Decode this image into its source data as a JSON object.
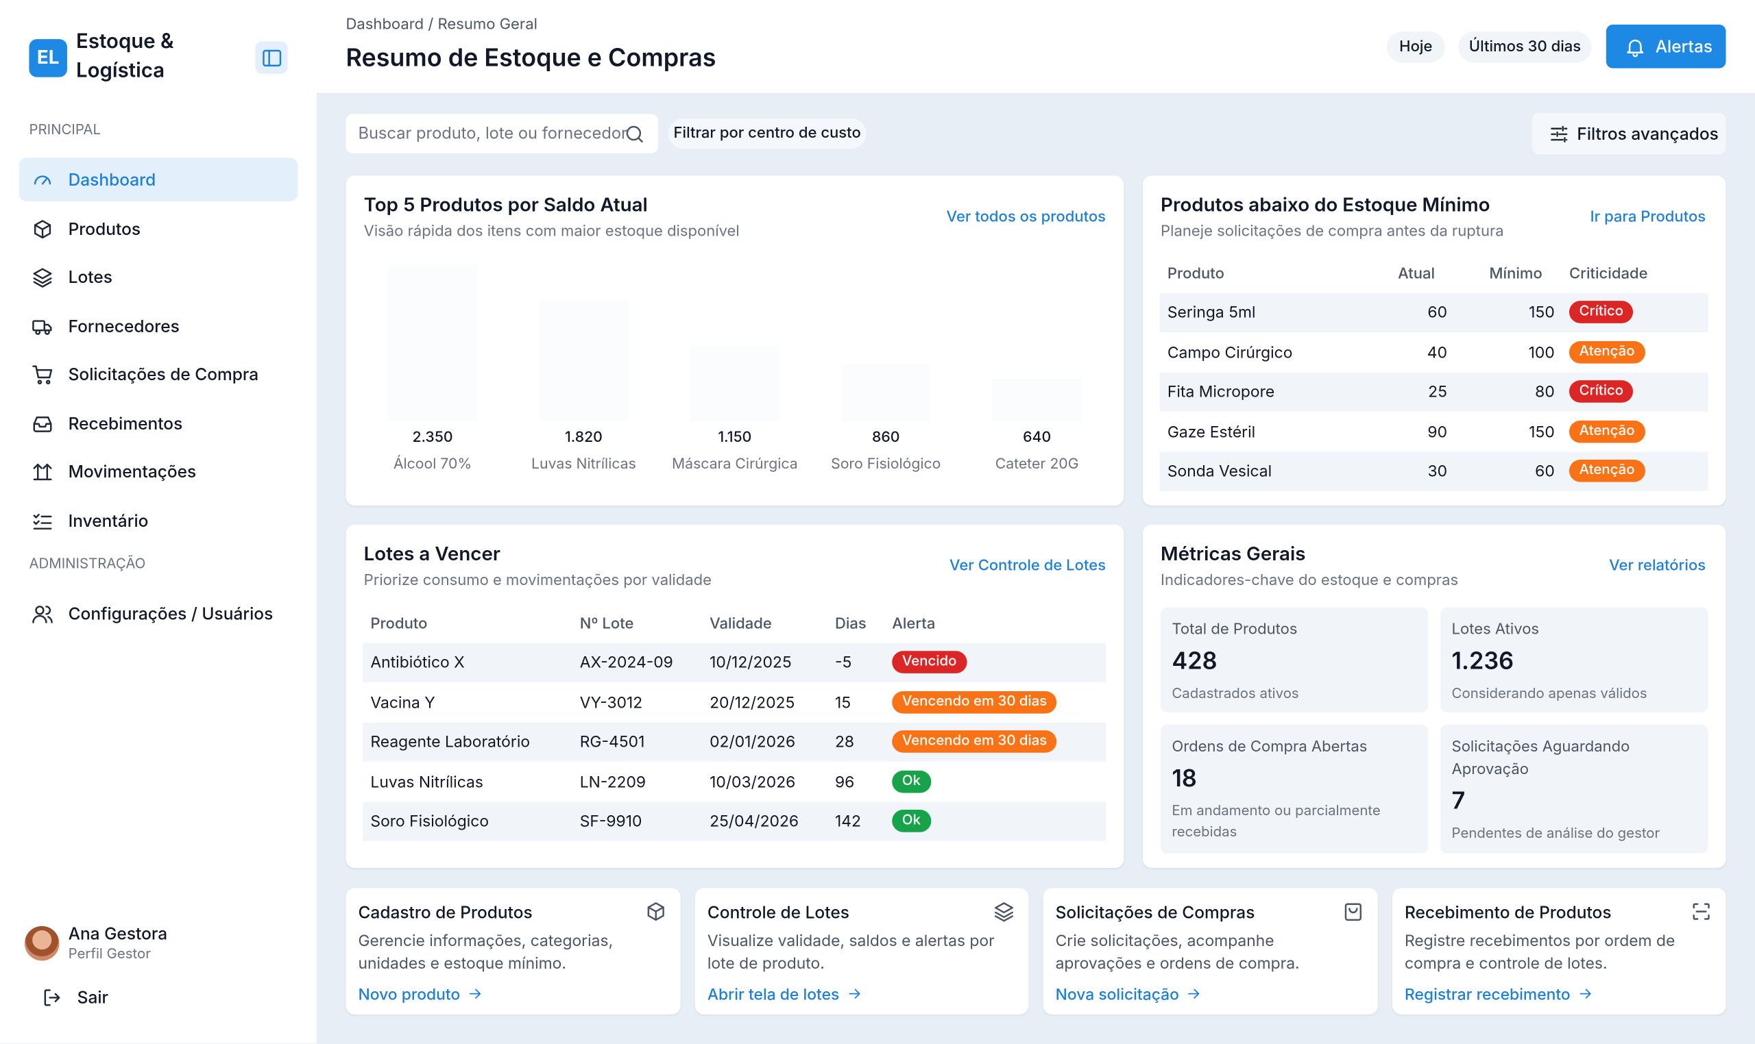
{
  "brand": {
    "logo": "EL",
    "name_line1": "Estoque &",
    "name_line2": "Logística"
  },
  "nav": {
    "sections": [
      {
        "title": "PRINCIPAL",
        "items": [
          "Dashboard",
          "Produtos",
          "Lotes",
          "Fornecedores",
          "Solicitações de Compra",
          "Recebimentos",
          "Movimentações",
          "Inventário"
        ]
      },
      {
        "title": "ADMINISTRAÇÃO",
        "items": [
          "Configurações / Usuários"
        ]
      }
    ]
  },
  "user": {
    "name": "Ana Gestora",
    "role": "Perfil Gestor",
    "logout": "Sair"
  },
  "header": {
    "breadcrumb": "Dashboard / Resumo Geral",
    "title": "Resumo de Estoque e Compras",
    "buttons": [
      "Hoje",
      "Últimos 30 dias"
    ],
    "alerts": "Alertas"
  },
  "toolbar": {
    "search_placeholder": "Buscar produto, lote ou fornecedor",
    "filter": "Filtrar por centro de custo",
    "advanced": "Filtros avançados"
  },
  "chart_data": {
    "type": "bar",
    "title": "Top 5 Produtos por Saldo Atual",
    "subtitle": "Visão rápida dos itens com maior estoque disponível",
    "link": "Ver todos os produtos",
    "categories": [
      "Álcool 70%",
      "Luvas Nitrílicas",
      "Máscara Cirúrgica",
      "Soro Fisiológico",
      "Cateter 20G"
    ],
    "values": [
      2350,
      1820,
      1150,
      860,
      640
    ],
    "value_labels": [
      "2.350",
      "1.820",
      "1.150",
      "860",
      "640"
    ]
  },
  "low_stock": {
    "title": "Produtos abaixo do Estoque Mínimo",
    "subtitle": "Planeje solicitações de compra antes da ruptura",
    "link": "Ir para Produtos",
    "columns": [
      "Produto",
      "Atual",
      "Mínimo",
      "Criticidade"
    ],
    "rows": [
      {
        "cells": [
          "Seringa 5ml",
          "60",
          "150",
          "Crítico"
        ],
        "badge_color": "#dc2626"
      },
      {
        "cells": [
          "Campo Cirúrgico",
          "40",
          "100",
          "Atenção"
        ],
        "badge_color": "#f97316"
      },
      {
        "cells": [
          "Fita Micropore",
          "25",
          "80",
          "Crítico"
        ],
        "badge_color": "#dc2626"
      },
      {
        "cells": [
          "Gaze Estéril",
          "90",
          "150",
          "Atenção"
        ],
        "badge_color": "#f97316"
      },
      {
        "cells": [
          "Sonda Vesical",
          "30",
          "60",
          "Atenção"
        ],
        "badge_color": "#f97316"
      }
    ]
  },
  "lots": {
    "title": "Lotes a Vencer",
    "subtitle": "Priorize consumo e movimentações por validade",
    "link": "Ver Controle de Lotes",
    "columns": [
      "Produto",
      "Nº Lote",
      "Validade",
      "Dias",
      "Alerta"
    ],
    "rows": [
      {
        "cells": [
          "Antibiótico X",
          "AX-2024-09",
          "10/12/2025",
          "-5",
          "Vencido"
        ],
        "badge_color": "#dc2626"
      },
      {
        "cells": [
          "Vacina Y",
          "VY-3012",
          "20/12/2025",
          "15",
          "Vencendo em 30 dias"
        ],
        "badge_color": "#f97316"
      },
      {
        "cells": [
          "Reagente Laboratório",
          "RG-4501",
          "02/01/2026",
          "28",
          "Vencendo em 30 dias"
        ],
        "badge_color": "#f97316"
      },
      {
        "cells": [
          "Luvas Nitrílicas",
          "LN-2209",
          "10/03/2026",
          "96",
          "Ok"
        ],
        "badge_color": "#16a34a"
      },
      {
        "cells": [
          "Soro Fisiológico",
          "SF-9910",
          "25/04/2026",
          "142",
          "Ok"
        ],
        "badge_color": "#16a34a"
      }
    ]
  },
  "metrics": {
    "title": "Métricas Gerais",
    "subtitle": "Indicadores-chave do estoque e compras",
    "link": "Ver relatórios",
    "cards": [
      {
        "label": "Total de Produtos",
        "value": "428",
        "note": "Cadastrados ativos"
      },
      {
        "label": "Lotes Ativos",
        "value": "1.236",
        "note": "Considerando apenas válidos"
      },
      {
        "label": "Ordens de Compra Abertas",
        "value": "18",
        "note": "Em andamento ou parcialmente recebidas"
      },
      {
        "label": "Solicitações Aguardando Aprovação",
        "value": "7",
        "note": "Pendentes de análise do gestor"
      }
    ]
  },
  "shortcuts": [
    {
      "title": "Cadastro de Produtos",
      "description": "Gerencie informações, categorias, unidades e estoque mínimo.",
      "action": "Novo produto"
    },
    {
      "title": "Controle de Lotes",
      "description": "Visualize validade, saldos e alertas por lote de produto.",
      "action": "Abrir tela de lotes"
    },
    {
      "title": "Solicitações de Compras",
      "description": "Crie solicitações, acompanhe aprovações e ordens de compra.",
      "action": "Nova solicitação"
    },
    {
      "title": "Recebimento de Produtos",
      "description": "Registre recebimentos por ordem de compra e controle de lotes.",
      "action": "Registrar recebimento"
    }
  ]
}
